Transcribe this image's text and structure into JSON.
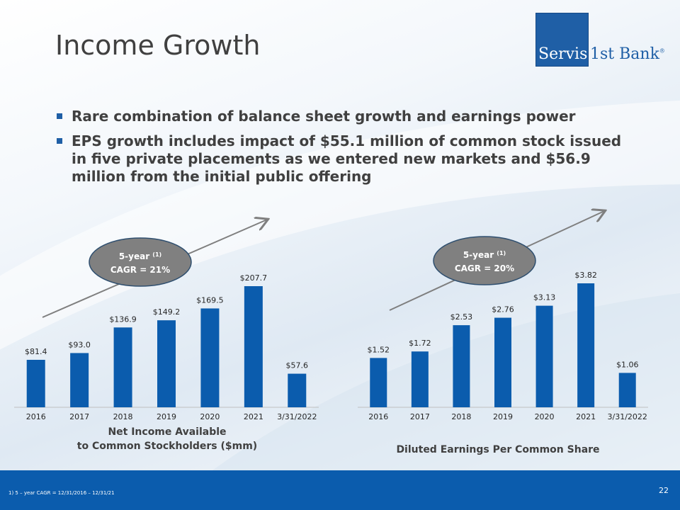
{
  "slide": {
    "title": "Income Growth",
    "bullets": [
      "Rare combination of balance sheet growth and earnings power",
      "EPS growth includes impact of $55.1 million of common stock issued in five private placements as we entered new markets and $56.9 million from the initial public offering"
    ],
    "logo": {
      "part1": "Servis",
      "part2": "1st Bank",
      "mark": "®"
    },
    "footnote": "1)     5 – year CAGR = 12/31/2016 – 12/31/21",
    "page_number": "22",
    "colors": {
      "bar": "#0b5cad",
      "footer": "#0b5cad",
      "ellipse": "#808080",
      "arrow": "#7f7f7f",
      "logo_blue": "#1f5fa6"
    }
  },
  "chart_data": [
    {
      "type": "bar",
      "title": "Net Income Available\nto Common Stockholders ($mm)",
      "title_lines": [
        "Net Income Available",
        "to Common Stockholders ($mm)"
      ],
      "categories": [
        "2016",
        "2017",
        "2018",
        "2019",
        "2020",
        "2021",
        "3/31/2022"
      ],
      "values": [
        81.4,
        93.0,
        136.9,
        149.2,
        169.5,
        207.7,
        57.6
      ],
      "value_labels": [
        "$81.4",
        "$93.0",
        "$136.9",
        "$149.2",
        "$169.5",
        "$207.7",
        "$57.6"
      ],
      "ylim": [
        0,
        207.7
      ],
      "annotation": {
        "line1": "5-year ",
        "sup": "(1)",
        "line2": "CAGR = 21%"
      }
    },
    {
      "type": "bar",
      "title": "Diluted Earnings Per Common Share",
      "title_lines": [
        "Diluted Earnings Per Common Share"
      ],
      "categories": [
        "2016",
        "2017",
        "2018",
        "2019",
        "2020",
        "2021",
        "3/31/2022"
      ],
      "values": [
        1.52,
        1.72,
        2.53,
        2.76,
        3.13,
        3.82,
        1.06
      ],
      "value_labels": [
        "$1.52",
        "$1.72",
        "$2.53",
        "$2.76",
        "$3.13",
        "$3.82",
        "$1.06"
      ],
      "ylim": [
        0,
        3.82
      ],
      "annotation": {
        "line1": "5-year ",
        "sup": "(1)",
        "line2": "CAGR = 20%"
      }
    }
  ]
}
